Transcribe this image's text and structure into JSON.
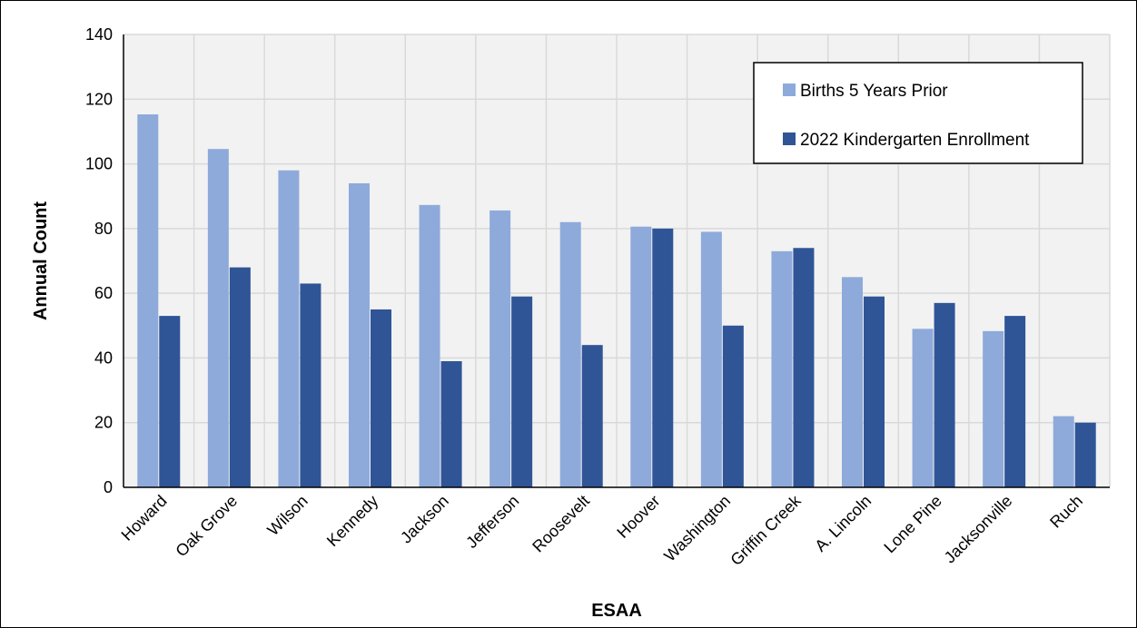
{
  "chart_data": {
    "type": "bar",
    "title": "",
    "xlabel": "ESAA",
    "ylabel": "Annual Count",
    "ylim": [
      0,
      140
    ],
    "yticks": [
      0,
      20,
      40,
      60,
      80,
      100,
      120,
      140
    ],
    "grid": true,
    "legend_position": "top-right",
    "categories": [
      "Howard",
      "Oak Grove",
      "Wilson",
      "Kennedy",
      "Jackson",
      "Jefferson",
      "Roosevelt",
      "Hoover",
      "Washington",
      "Griffin Creek",
      "A. Lincoln",
      "Lone Pine",
      "Jacksonville",
      "Ruch"
    ],
    "series": [
      {
        "name": "Births 5 Years Prior",
        "color": "#8eaadb",
        "values": [
          115.3,
          104.6,
          98,
          94,
          87.3,
          85.6,
          82,
          80.6,
          79,
          73,
          65,
          49,
          48.3,
          22
        ]
      },
      {
        "name": "2022 Kindergarten Enrollment",
        "color": "#2f5597",
        "values": [
          53,
          68,
          63,
          55,
          39,
          59,
          44,
          80,
          50,
          74,
          59,
          57,
          53,
          20
        ]
      }
    ]
  },
  "colors": {
    "plot_background": "#f2f2f2",
    "gridline": "#d9d9d9",
    "axis": "#000000"
  }
}
